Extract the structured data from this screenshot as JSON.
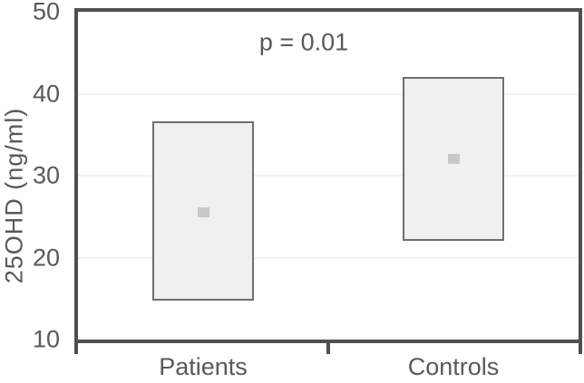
{
  "chart_data": {
    "type": "box",
    "title": "",
    "ylabel": "25OHD (ng/ml)",
    "xlabel": "",
    "categories": [
      "Patients",
      "Controls"
    ],
    "series": [
      {
        "name": "Patients",
        "box_low": 14.7,
        "box_high": 36.6,
        "mean": 25.5
      },
      {
        "name": "Controls",
        "box_low": 22,
        "box_high": 42,
        "mean": 32
      }
    ],
    "ylim": [
      10,
      50
    ],
    "yticks": [
      10,
      20,
      30,
      40,
      50
    ],
    "grid": "horizontal gridlines at interior ticks (20, 30, 40)",
    "legend": "none",
    "annotation": "p = 0.01"
  },
  "colors": {
    "frame": "#4f4f4f",
    "text": "#595959",
    "gridline": "#f2f2f2",
    "box_fill": "#f0f0f0",
    "box_border": "#6e6e6e",
    "marker": "#c8c8c8",
    "background": "#ffffff"
  }
}
